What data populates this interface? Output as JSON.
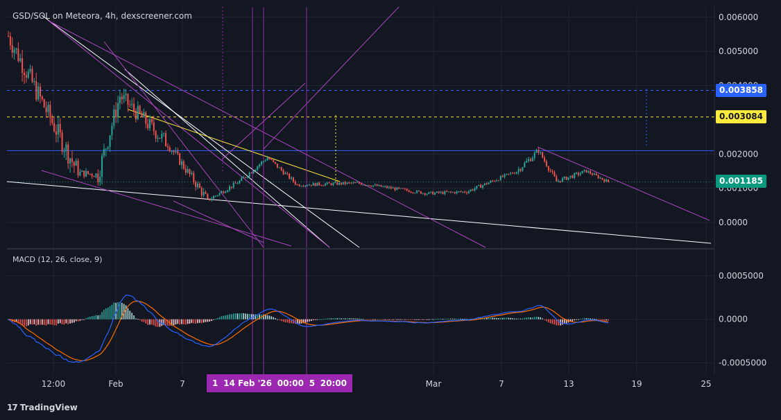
{
  "header": {
    "title": "GSD/SOL on Meteora, 4h, dexscreener.com"
  },
  "macd": {
    "title": "MACD (12, 26, close, 9)"
  },
  "footer": {
    "brand": "TradingView",
    "logo_glyph": "17"
  },
  "price_badges": [
    {
      "id": "blue",
      "value": "0.003858",
      "price": 0.003858,
      "bg": "#2962ff",
      "fg": "#ffffff"
    },
    {
      "id": "yellow",
      "value": "0.003084",
      "price": 0.003084,
      "bg": "#ffeb3b",
      "fg": "#131722"
    },
    {
      "id": "last",
      "value": "0.001185",
      "price": 0.001185,
      "bg": "#089981",
      "fg": "#ffffff"
    }
  ],
  "time_badge": {
    "left": "1",
    "middle": "14 Feb '26",
    "time1": "00:00",
    "right_frag": "5",
    "time2": "20:00"
  },
  "colors": {
    "background": "#131722",
    "grid": "#222632",
    "up": "#26a69a",
    "down": "#ef5350",
    "macd_line": "#2962ff",
    "signal_line": "#ff6d00",
    "trend": "#ffffff",
    "fib": "#ab47bc",
    "yellow": "#ffeb3b",
    "blue_level": "#2962ff",
    "vertical": "#9c27b0"
  },
  "chart_data": {
    "type": "candlestick",
    "price_axis": {
      "ticks": [
        "0.006000",
        "0.005000",
        "0.004000",
        "0.002000",
        "0.001000",
        "0.0000"
      ],
      "ylim": [
        -0.00075,
        0.0063
      ]
    },
    "macd_axis": {
      "ticks": [
        "0.0005000",
        "0.0000",
        "-0.0005000"
      ],
      "ylim": [
        -0.00063,
        0.0008
      ]
    },
    "x_ticks": [
      "12:00",
      "Feb",
      "7",
      "Mar",
      "7",
      "13",
      "19",
      "25"
    ],
    "horizontal_levels": [
      {
        "value": 0.003858,
        "style": "dashed",
        "color": "#2962ff"
      },
      {
        "value": 0.003084,
        "style": "dashed",
        "color": "#ffeb3b"
      },
      {
        "value": 0.0021,
        "style": "solid",
        "color": "#2962ff"
      },
      {
        "value": 0.001185,
        "style": "dotted",
        "color": "#089981"
      }
    ],
    "segments": [
      {
        "start": 0,
        "end": 35,
        "from": 0.00545,
        "to": 0.00145,
        "vol": 0.00038
      },
      {
        "start": 35,
        "end": 45,
        "from": 0.00145,
        "to": 0.0014,
        "vol": 0.00014
      },
      {
        "start": 45,
        "end": 56,
        "from": 0.0014,
        "to": 0.0037,
        "vol": 0.00035
      },
      {
        "start": 56,
        "end": 80,
        "from": 0.0037,
        "to": 0.0023,
        "vol": 0.0003
      },
      {
        "start": 80,
        "end": 100,
        "from": 0.0023,
        "to": 0.00065,
        "vol": 0.00018
      },
      {
        "start": 100,
        "end": 116,
        "from": 0.00065,
        "to": 0.0012,
        "vol": 8e-05
      },
      {
        "start": 116,
        "end": 130,
        "from": 0.0012,
        "to": 0.0019,
        "vol": 9e-05
      },
      {
        "start": 130,
        "end": 145,
        "from": 0.0019,
        "to": 0.0011,
        "vol": 8e-05
      },
      {
        "start": 145,
        "end": 175,
        "from": 0.0011,
        "to": 0.00115,
        "vol": 6e-05
      },
      {
        "start": 175,
        "end": 210,
        "from": 0.00115,
        "to": 0.00085,
        "vol": 6e-05
      },
      {
        "start": 210,
        "end": 230,
        "from": 0.00085,
        "to": 0.0009,
        "vol": 6e-05
      },
      {
        "start": 230,
        "end": 255,
        "from": 0.0009,
        "to": 0.0015,
        "vol": 7e-05
      },
      {
        "start": 255,
        "end": 266,
        "from": 0.0015,
        "to": 0.0021,
        "vol": 0.00012
      },
      {
        "start": 266,
        "end": 275,
        "from": 0.0021,
        "to": 0.0012,
        "vol": 0.0001
      },
      {
        "start": 275,
        "end": 290,
        "from": 0.0012,
        "to": 0.0015,
        "vol": 8e-05
      },
      {
        "start": 290,
        "end": 301,
        "from": 0.0015,
        "to": 0.001185,
        "vol": 6e-05
      }
    ],
    "last_price": 0.001185
  }
}
